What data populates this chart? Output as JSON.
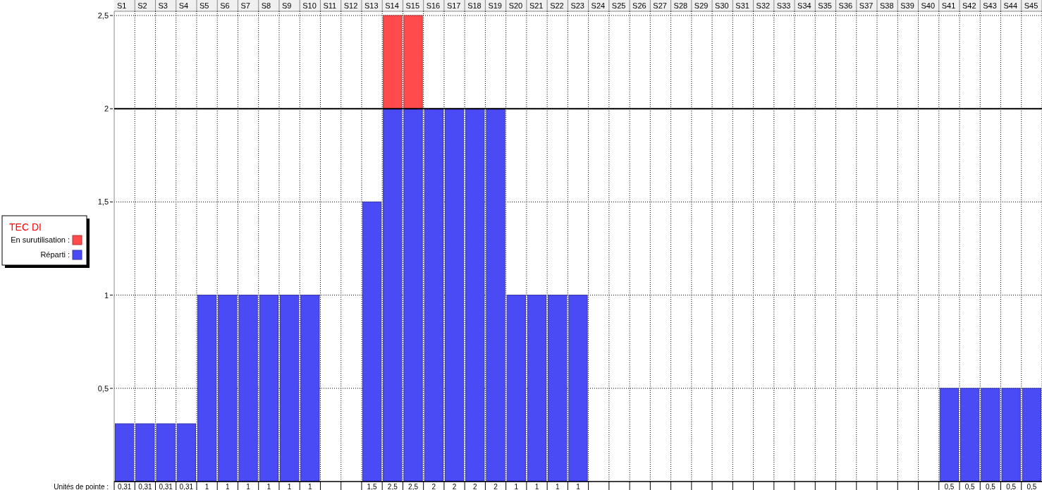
{
  "chart_data": {
    "type": "bar",
    "stacked": true,
    "legend_title": "TEC DI",
    "legend": "left",
    "grid": true,
    "categories": [
      "S1",
      "S2",
      "S3",
      "S4",
      "S5",
      "S6",
      "S7",
      "S8",
      "S9",
      "S10",
      "S11",
      "S12",
      "S13",
      "S14",
      "S15",
      "S16",
      "S17",
      "S18",
      "S19",
      "S20",
      "S21",
      "S22",
      "S23",
      "S24",
      "S25",
      "S26",
      "S27",
      "S28",
      "S29",
      "S30",
      "S31",
      "S32",
      "S33",
      "S34",
      "S35",
      "S36",
      "S37",
      "S38",
      "S39",
      "S40",
      "S41",
      "S42",
      "S43",
      "S44",
      "S45"
    ],
    "series": [
      {
        "name": "Réparti :",
        "color": "#4b4bf5",
        "values": [
          0.31,
          0.31,
          0.31,
          0.31,
          1,
          1,
          1,
          1,
          1,
          1,
          null,
          null,
          1.5,
          2,
          2,
          2,
          2,
          2,
          2,
          1,
          1,
          1,
          1,
          null,
          null,
          null,
          null,
          null,
          null,
          null,
          null,
          null,
          null,
          null,
          null,
          null,
          null,
          null,
          null,
          null,
          0.5,
          0.5,
          0.5,
          0.5,
          0.5
        ]
      },
      {
        "name": "En surutilisation :",
        "color": "#ff4b4b",
        "values": [
          null,
          null,
          null,
          null,
          null,
          null,
          null,
          null,
          null,
          null,
          null,
          null,
          null,
          0.5,
          0.5,
          null,
          null,
          null,
          null,
          null,
          null,
          null,
          null,
          null,
          null,
          null,
          null,
          null,
          null,
          null,
          null,
          null,
          null,
          null,
          null,
          null,
          null,
          null,
          null,
          null,
          null,
          null,
          null,
          null,
          null
        ]
      }
    ],
    "totals": [
      "0,31",
      "0,31",
      "0,31",
      "0,31",
      "1",
      "1",
      "1",
      "1",
      "1",
      "1",
      null,
      null,
      "1,5",
      "2,5",
      "2,5",
      "2",
      "2",
      "2",
      "2",
      "1",
      "1",
      "1",
      "1",
      null,
      null,
      null,
      null,
      null,
      null,
      null,
      null,
      null,
      null,
      null,
      null,
      null,
      null,
      null,
      null,
      null,
      "0,5",
      "0,5",
      "0,5",
      "0,5",
      "0,5"
    ],
    "annotations": [
      "Unités de pointe :"
    ],
    "ylim": [
      0,
      2.5
    ],
    "yticks": [
      {
        "value": 0.5,
        "label": "0,5"
      },
      1,
      {
        "value": 1.5,
        "label": "1,5"
      },
      2,
      {
        "value": 2.5,
        "label": "2,5"
      }
    ],
    "ref_lines": [
      {
        "axis": "y",
        "value": 2,
        "color": "#000000"
      }
    ]
  }
}
